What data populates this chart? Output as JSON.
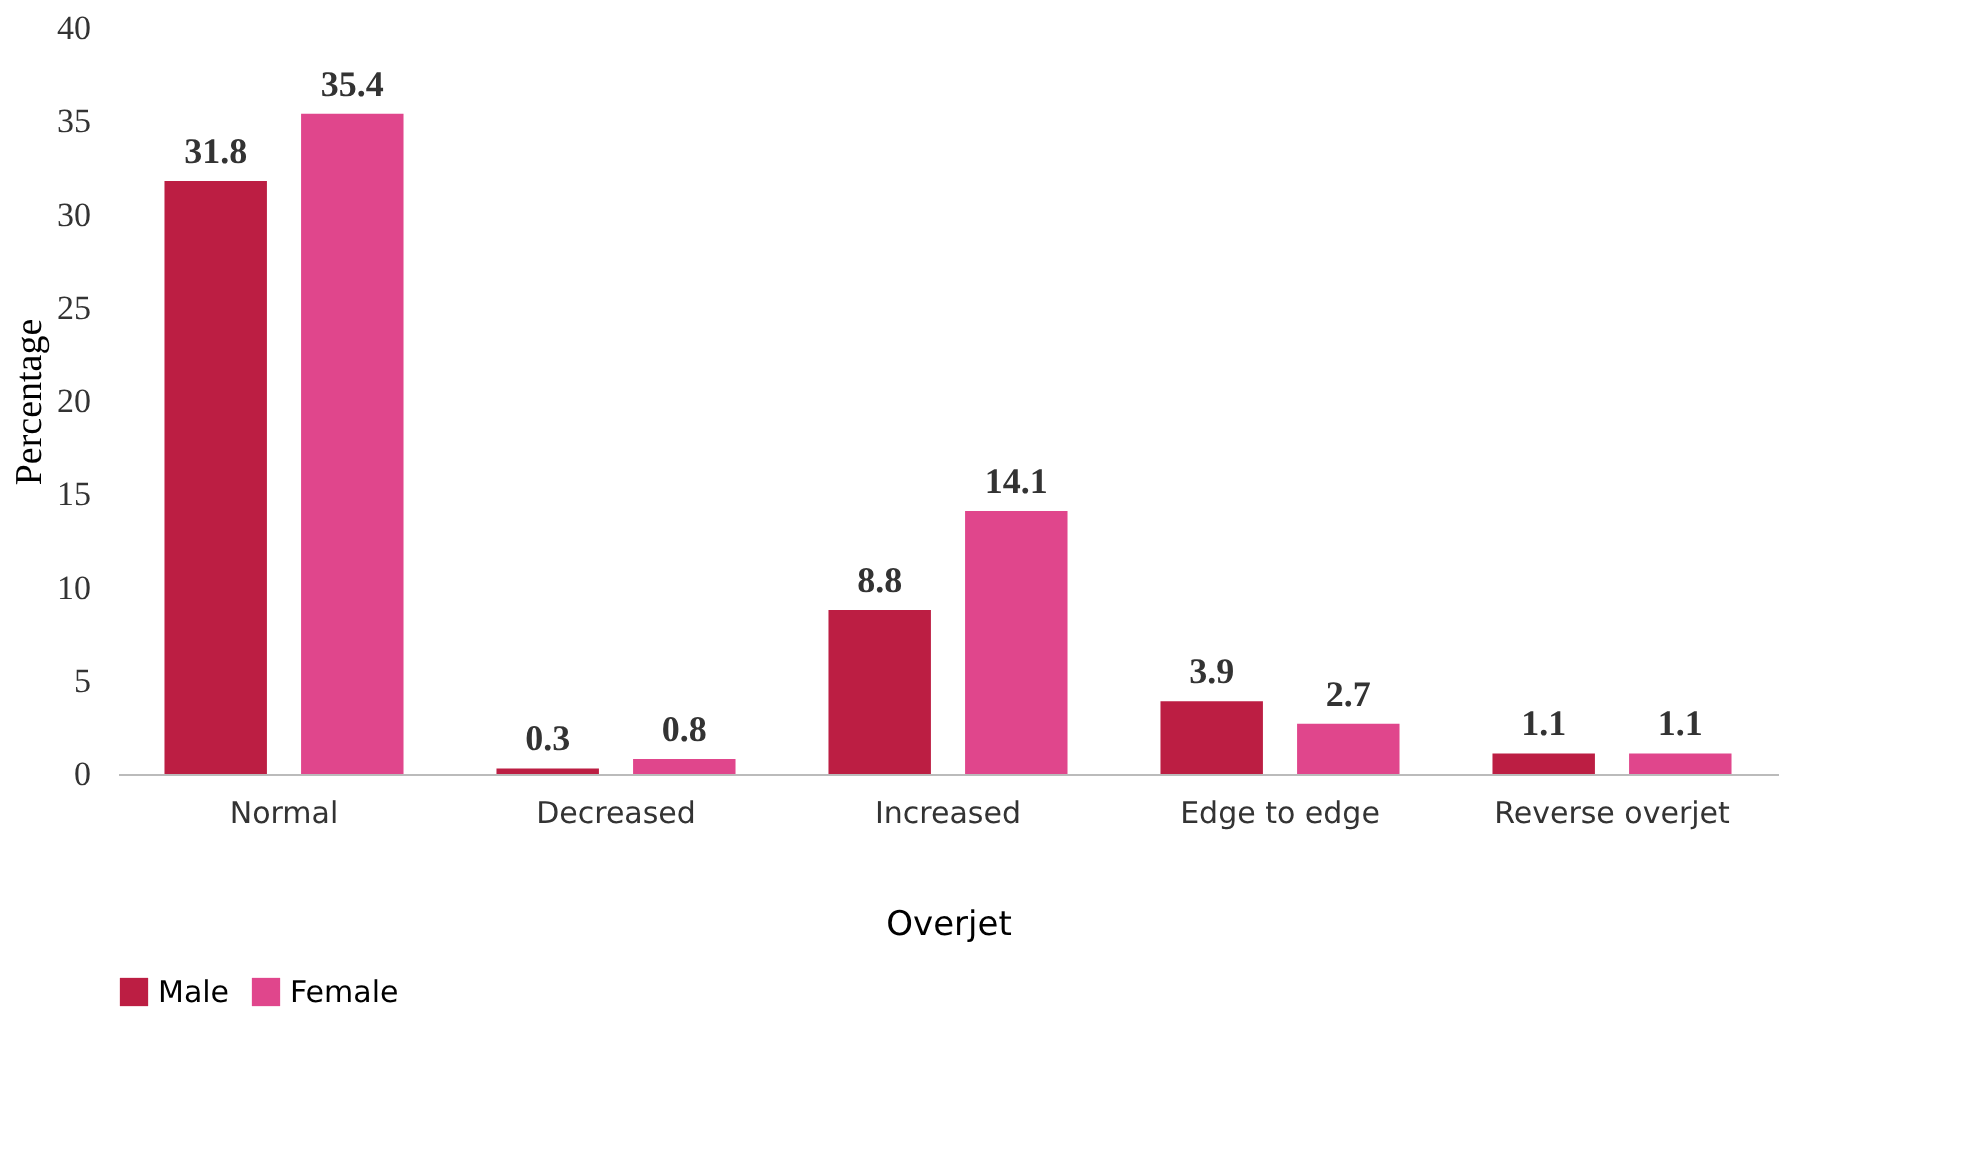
{
  "chart_data": {
    "type": "bar",
    "xlabel": "Overjet",
    "ylabel": "Percentage",
    "categories": [
      "Normal",
      "Decreased",
      "Increased",
      "Edge to edge",
      "Reverse overjet"
    ],
    "series": [
      {
        "name": "Male",
        "color": "#bc1e43",
        "values": [
          31.8,
          0.3,
          8.8,
          3.9,
          1.1
        ]
      },
      {
        "name": "Female",
        "color": "#e0468c",
        "values": [
          35.4,
          0.8,
          14.1,
          2.7,
          1.1
        ]
      }
    ],
    "ylim": [
      0,
      40
    ],
    "yticks": [
      0,
      5,
      10,
      15,
      20,
      25,
      30,
      35,
      40
    ],
    "data_labels": true,
    "grid": false,
    "legend": "bottom"
  }
}
